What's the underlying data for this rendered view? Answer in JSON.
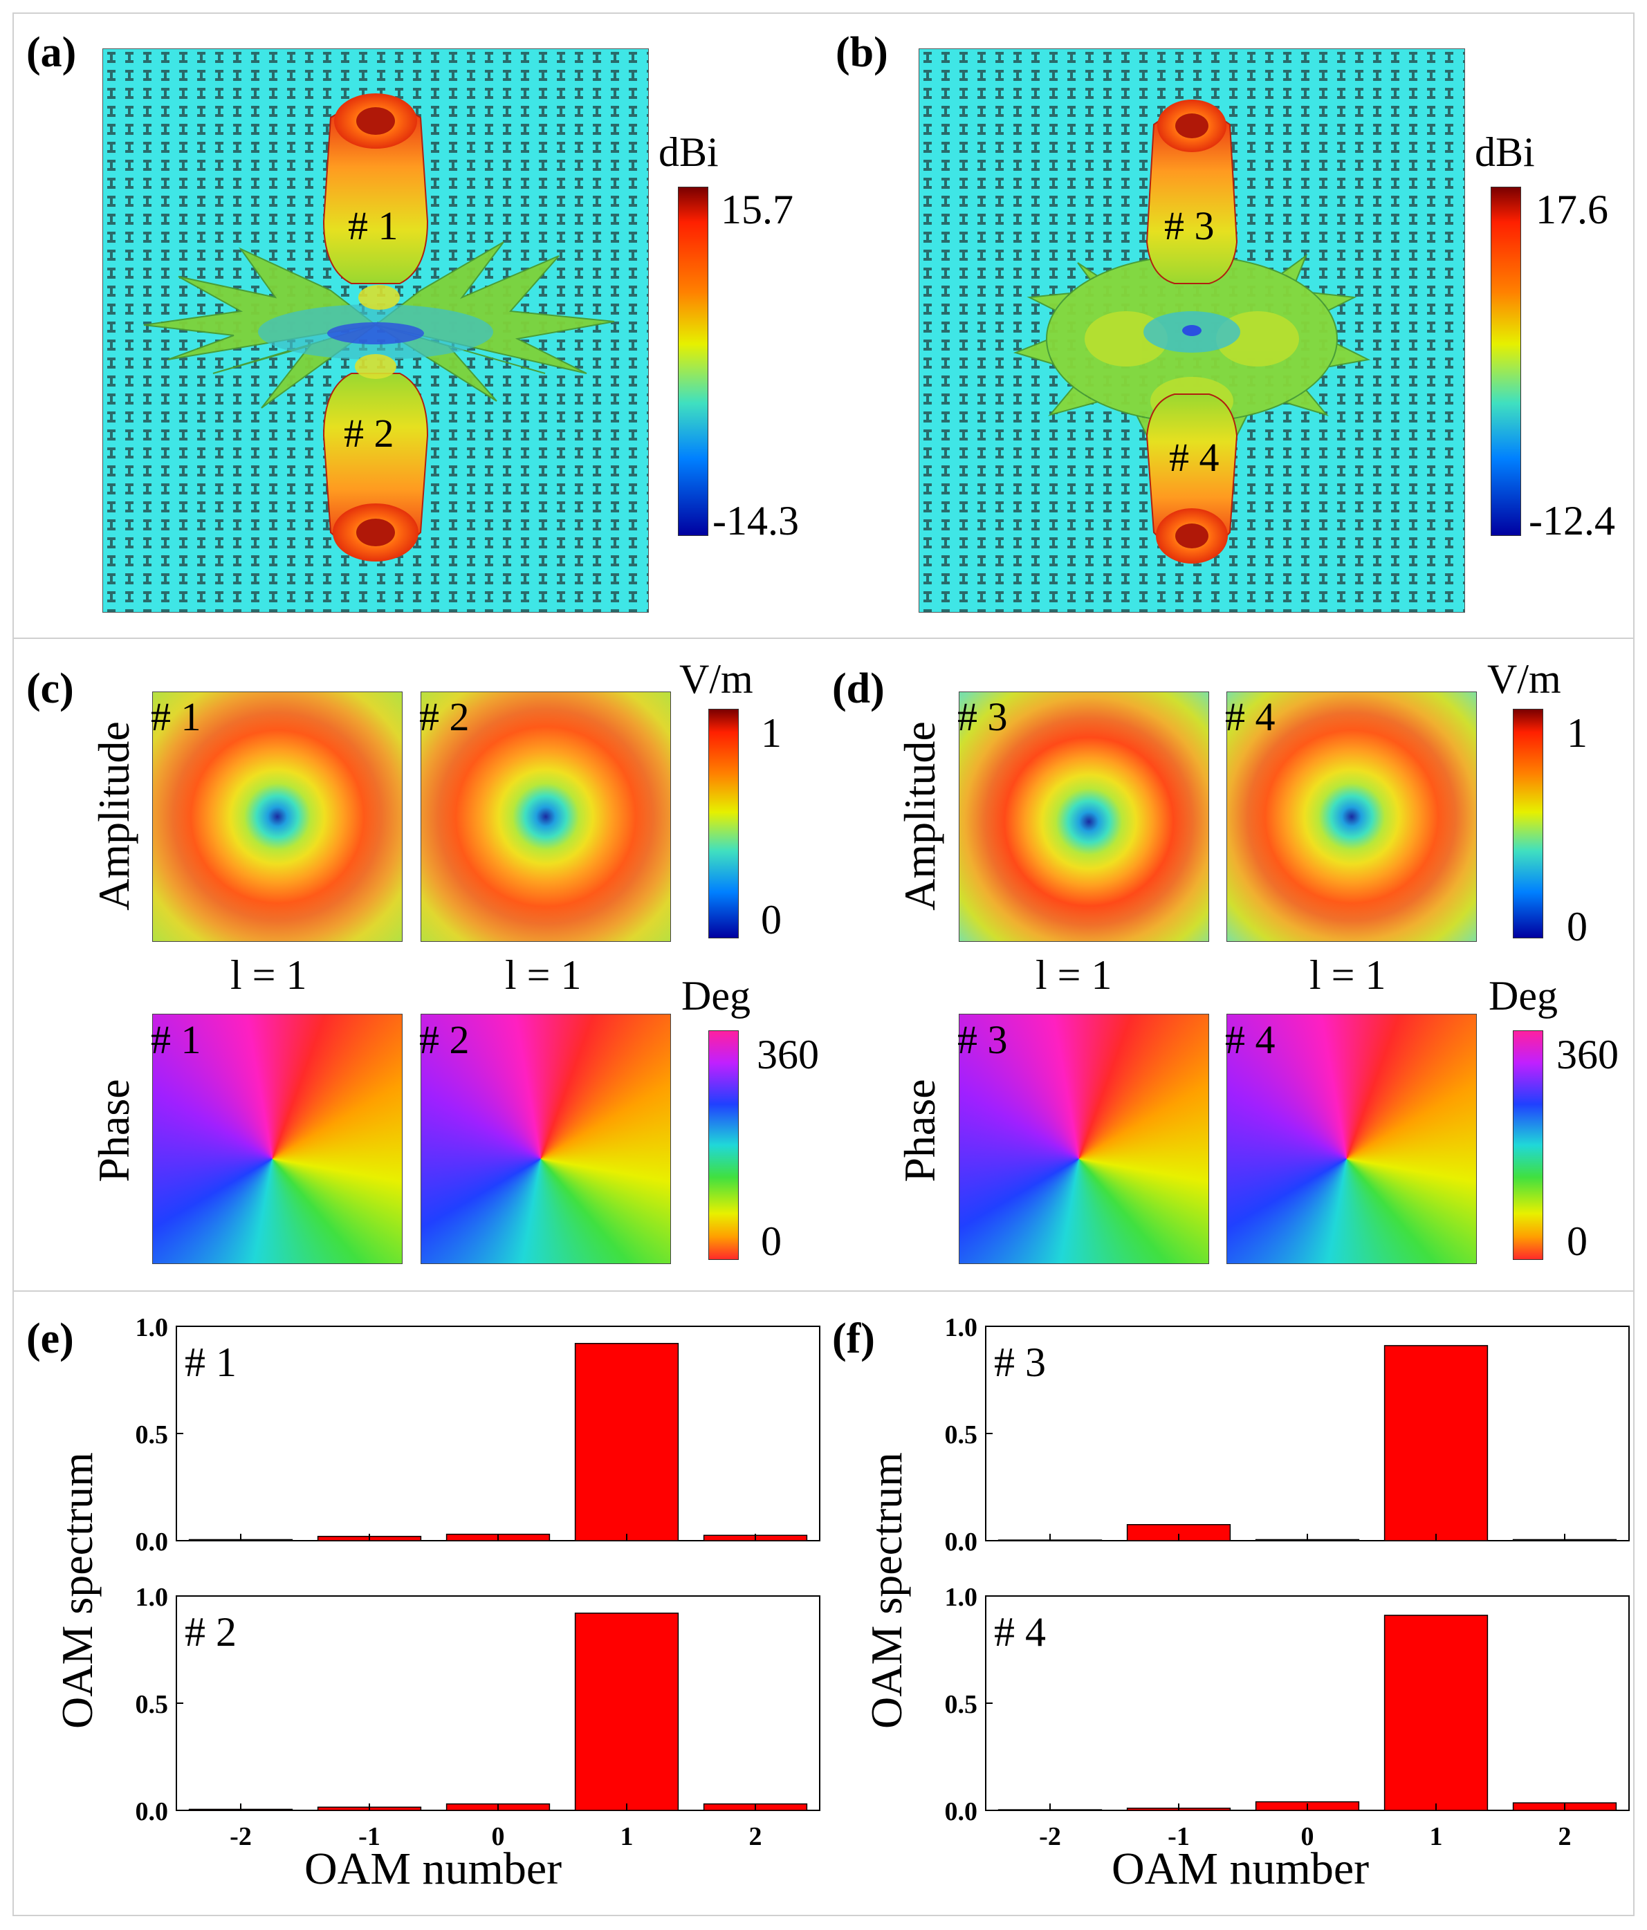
{
  "panels": {
    "a": {
      "label": "(a)",
      "unit": "dBi",
      "max": "15.7",
      "min": "-14.3",
      "tag_top": "# 1",
      "tag_bottom": "# 2"
    },
    "b": {
      "label": "(b)",
      "unit": "dBi",
      "max": "17.6",
      "min": "-12.4",
      "tag_top": "# 3",
      "tag_bottom": "# 4"
    },
    "c": {
      "label": "(c)",
      "amp_label": "Amplitude",
      "phase_label": "Phase",
      "amp_unit": "V/m",
      "amp_max": "1",
      "amp_min": "0",
      "phase_unit": "Deg",
      "phase_max": "360",
      "phase_min": "0",
      "mode_left": "l = 1",
      "mode_right": "l = 1",
      "tag_left": "# 1",
      "tag_right": "# 2"
    },
    "d": {
      "label": "(d)",
      "amp_label": "Amplitude",
      "phase_label": "Phase",
      "amp_unit": "V/m",
      "amp_max": "1",
      "amp_min": "0",
      "phase_unit": "Deg",
      "phase_max": "360",
      "phase_min": "0",
      "mode_left": "l = 1",
      "mode_right": "l = 1",
      "tag_left": "# 3",
      "tag_right": "# 4"
    },
    "e": {
      "label": "(e)",
      "ylabel": "OAM spectrum",
      "xlabel": "OAM number"
    },
    "f": {
      "label": "(f)",
      "ylabel": "OAM spectrum",
      "xlabel": "OAM number"
    }
  },
  "colors": {
    "bar": "#ff0000",
    "substrate": "#3fe6e6"
  },
  "chart_data": [
    {
      "type": "bar",
      "id": "e-top",
      "annotation": "# 1",
      "categories": [
        "-2",
        "-1",
        "0",
        "1",
        "2"
      ],
      "values": [
        0.005,
        0.02,
        0.03,
        0.92,
        0.025
      ],
      "ylim": [
        0,
        1.0
      ],
      "yticks": [
        "0.0",
        "0.5",
        "1.0"
      ],
      "show_xticks": false
    },
    {
      "type": "bar",
      "id": "e-bottom",
      "annotation": "# 2",
      "categories": [
        "-2",
        "-1",
        "0",
        "1",
        "2"
      ],
      "values": [
        0.005,
        0.015,
        0.03,
        0.92,
        0.03
      ],
      "ylim": [
        0,
        1.0
      ],
      "yticks": [
        "0.0",
        "0.5",
        "1.0"
      ],
      "show_xticks": true,
      "xlabel": "OAM number"
    },
    {
      "type": "bar",
      "id": "f-top",
      "annotation": "# 3",
      "categories": [
        "-2",
        "-1",
        "0",
        "1",
        "2"
      ],
      "values": [
        0.003,
        0.075,
        0.005,
        0.91,
        0.005
      ],
      "ylim": [
        0,
        1.0
      ],
      "yticks": [
        "0.0",
        "0.5",
        "1.0"
      ],
      "show_xticks": false
    },
    {
      "type": "bar",
      "id": "f-bottom",
      "annotation": "# 4",
      "categories": [
        "-2",
        "-1",
        "0",
        "1",
        "2"
      ],
      "values": [
        0.003,
        0.01,
        0.04,
        0.91,
        0.035
      ],
      "ylim": [
        0,
        1.0
      ],
      "yticks": [
        "0.0",
        "0.5",
        "1.0"
      ],
      "show_xticks": true,
      "xlabel": "OAM number"
    }
  ]
}
